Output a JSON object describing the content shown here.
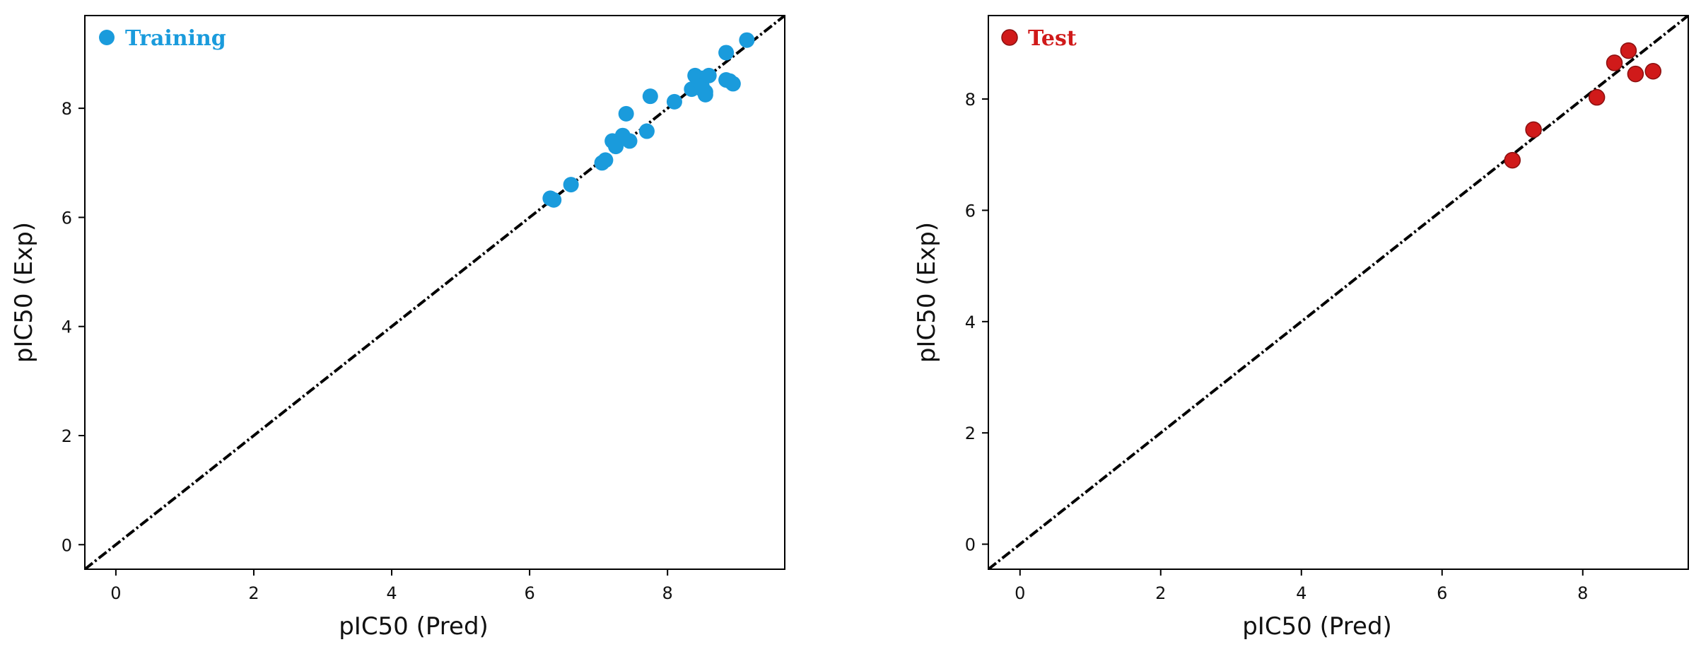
{
  "colors": {
    "training": "#1a9bdc",
    "test": "#d01a1a",
    "axes": "#000000",
    "diagonal": "#000000"
  },
  "chart_data": [
    {
      "type": "scatter",
      "title": "",
      "xlabel": "pIC50 (Pred)",
      "ylabel": "pIC50 (Exp)",
      "xlim": [
        -0.45,
        9.7
      ],
      "ylim": [
        -0.45,
        9.7
      ],
      "xticks": [
        0,
        2,
        4,
        6,
        8
      ],
      "yticks": [
        0,
        2,
        4,
        6,
        8
      ],
      "tick_labels": [
        "0",
        "2",
        "4",
        "6",
        "8"
      ],
      "grid": false,
      "legend_position": "top-left",
      "reference_line": "y = x (dash-dot)",
      "series": [
        {
          "name": "Training",
          "color": "#1a9bdc",
          "x": [
            6.3,
            6.35,
            6.6,
            7.05,
            7.1,
            7.2,
            7.25,
            7.35,
            7.45,
            7.4,
            7.7,
            7.75,
            8.1,
            8.35,
            8.4,
            8.45,
            8.5,
            8.55,
            8.5,
            8.6,
            8.55,
            8.5,
            8.85,
            8.9,
            8.95,
            8.85,
            9.15
          ],
          "y": [
            6.35,
            6.32,
            6.6,
            7.0,
            7.05,
            7.4,
            7.3,
            7.5,
            7.4,
            7.9,
            7.58,
            8.22,
            8.12,
            8.35,
            8.6,
            8.5,
            8.55,
            8.3,
            8.4,
            8.6,
            8.25,
            8.35,
            8.52,
            8.5,
            8.45,
            9.02,
            9.25
          ]
        }
      ]
    },
    {
      "type": "scatter",
      "title": "",
      "xlabel": "pIC50 (Pred)",
      "ylabel": "pIC50 (Exp)",
      "xlim": [
        -0.45,
        9.5
      ],
      "ylim": [
        -0.45,
        9.5
      ],
      "xticks": [
        0,
        2,
        4,
        6,
        8
      ],
      "yticks": [
        0,
        2,
        4,
        6,
        8
      ],
      "tick_labels": [
        "0",
        "2",
        "4",
        "6",
        "8"
      ],
      "grid": false,
      "legend_position": "top-left",
      "reference_line": "y = x (dash-dot)",
      "series": [
        {
          "name": "Test",
          "color": "#d01a1a",
          "x": [
            7.0,
            7.3,
            8.2,
            8.45,
            8.65,
            8.75,
            9.0
          ],
          "y": [
            6.9,
            7.45,
            8.03,
            8.65,
            8.87,
            8.45,
            8.5
          ]
        }
      ]
    }
  ]
}
